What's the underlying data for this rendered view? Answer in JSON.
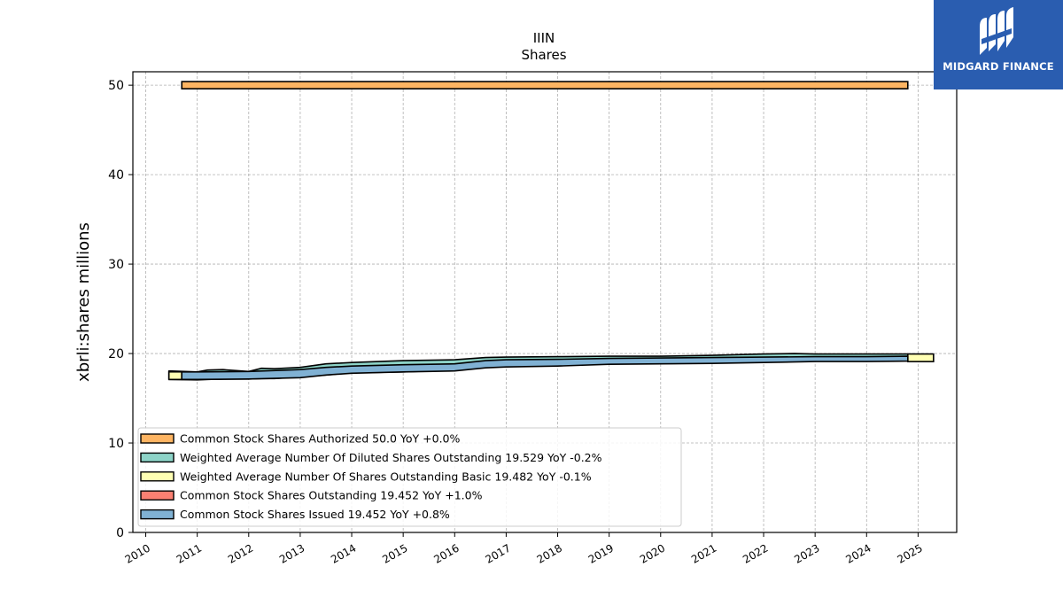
{
  "chart_data": {
    "type": "area",
    "title": "IIIN",
    "subtitle": "Shares",
    "xlabel": "",
    "ylabel": "xbrli:shares millions",
    "xlim": [
      2009.75,
      2025.75
    ],
    "ylim": [
      0,
      51.5
    ],
    "x_ticks": [
      2010,
      2011,
      2012,
      2013,
      2014,
      2015,
      2016,
      2017,
      2018,
      2019,
      2020,
      2021,
      2022,
      2023,
      2024,
      2025
    ],
    "x_tick_labels": [
      "2010",
      "2011",
      "2012",
      "2013",
      "2014",
      "2015",
      "2016",
      "2017",
      "2018",
      "2019",
      "2020",
      "2021",
      "2022",
      "2023",
      "2024",
      "2025"
    ],
    "y_ticks": [
      0,
      10,
      20,
      30,
      40,
      50
    ],
    "y_tick_labels": [
      "0",
      "10",
      "20",
      "30",
      "40",
      "50"
    ],
    "grid": true,
    "legend_position": "lower-left",
    "series": [
      {
        "name": "Common Stock Shares Authorized",
        "legend_label": "Common Stock Shares Authorized  50.0 YoY +0.0%",
        "color": "#fdb462",
        "kind": "bar",
        "x_start": 2010.7,
        "x_end": 2024.8,
        "y_low": 49.6,
        "y_high": 50.4
      },
      {
        "name": "Weighted Average Number Of Diluted Shares Outstanding",
        "legend_label": "Weighted Average Number Of Diluted Shares Outstanding  19.529 YoY -0.2%",
        "color": "#8dd3c7",
        "kind": "band",
        "x": [
          2010.45,
          2011,
          2011.2,
          2011.5,
          2012,
          2012.25,
          2012.5,
          2013,
          2013.5,
          2014,
          2015,
          2016,
          2016.6,
          2017,
          2018,
          2019,
          2020,
          2021,
          2022,
          2022.6,
          2023,
          2024,
          2024.8
        ],
        "upper": [
          18.05,
          17.95,
          18.15,
          18.2,
          18.0,
          18.35,
          18.3,
          18.45,
          18.85,
          19.0,
          19.2,
          19.3,
          19.55,
          19.6,
          19.65,
          19.7,
          19.7,
          19.8,
          19.95,
          20.0,
          19.95,
          19.95,
          19.95
        ],
        "lower": [
          17.1,
          17.05,
          17.1,
          17.15,
          17.15,
          17.2,
          17.2,
          17.4,
          17.6,
          17.85,
          17.95,
          18.15,
          18.5,
          18.55,
          18.75,
          18.9,
          18.95,
          19.0,
          19.05,
          19.1,
          19.15,
          19.15,
          19.2
        ]
      },
      {
        "name": "Weighted Average Number Of Shares Outstanding Basic",
        "legend_label": "Weighted Average Number Of Shares Outstanding Basic  19.482 YoY -0.1%",
        "color": "#ffffb3",
        "kind": "stubs",
        "stubs": [
          {
            "x_start": 2010.45,
            "x_end": 2010.7,
            "y_low": 17.1,
            "y_high": 17.95
          },
          {
            "x_start": 2024.8,
            "x_end": 2025.3,
            "y_low": 19.1,
            "y_high": 19.95
          }
        ]
      },
      {
        "name": "Common Stock Shares Outstanding",
        "legend_label": "Common Stock Shares Outstanding  19.452 YoY +1.0%",
        "color": "#fb8072",
        "kind": "hidden"
      },
      {
        "name": "Common Stock Shares Issued",
        "legend_label": "Common Stock Shares Issued  19.452 YoY +0.8%",
        "color": "#80b1d3",
        "kind": "band",
        "x": [
          2010.7,
          2011,
          2012,
          2013,
          2013.5,
          2014,
          2015,
          2016,
          2016.6,
          2017,
          2018,
          2019,
          2020,
          2021,
          2022,
          2023,
          2024,
          2024.8
        ],
        "upper": [
          17.95,
          17.95,
          18.0,
          18.2,
          18.45,
          18.6,
          18.75,
          18.85,
          19.2,
          19.3,
          19.35,
          19.45,
          19.5,
          19.55,
          19.6,
          19.65,
          19.65,
          19.7
        ],
        "lower": [
          17.1,
          17.1,
          17.15,
          17.3,
          17.6,
          17.8,
          17.95,
          18.05,
          18.4,
          18.5,
          18.6,
          18.8,
          18.85,
          18.9,
          19.0,
          19.1,
          19.1,
          19.15
        ]
      }
    ]
  },
  "brand": {
    "name": "MIDGARD FINANCE",
    "background": "#2a5db0",
    "logo_icon": "midgard-logo-icon"
  }
}
